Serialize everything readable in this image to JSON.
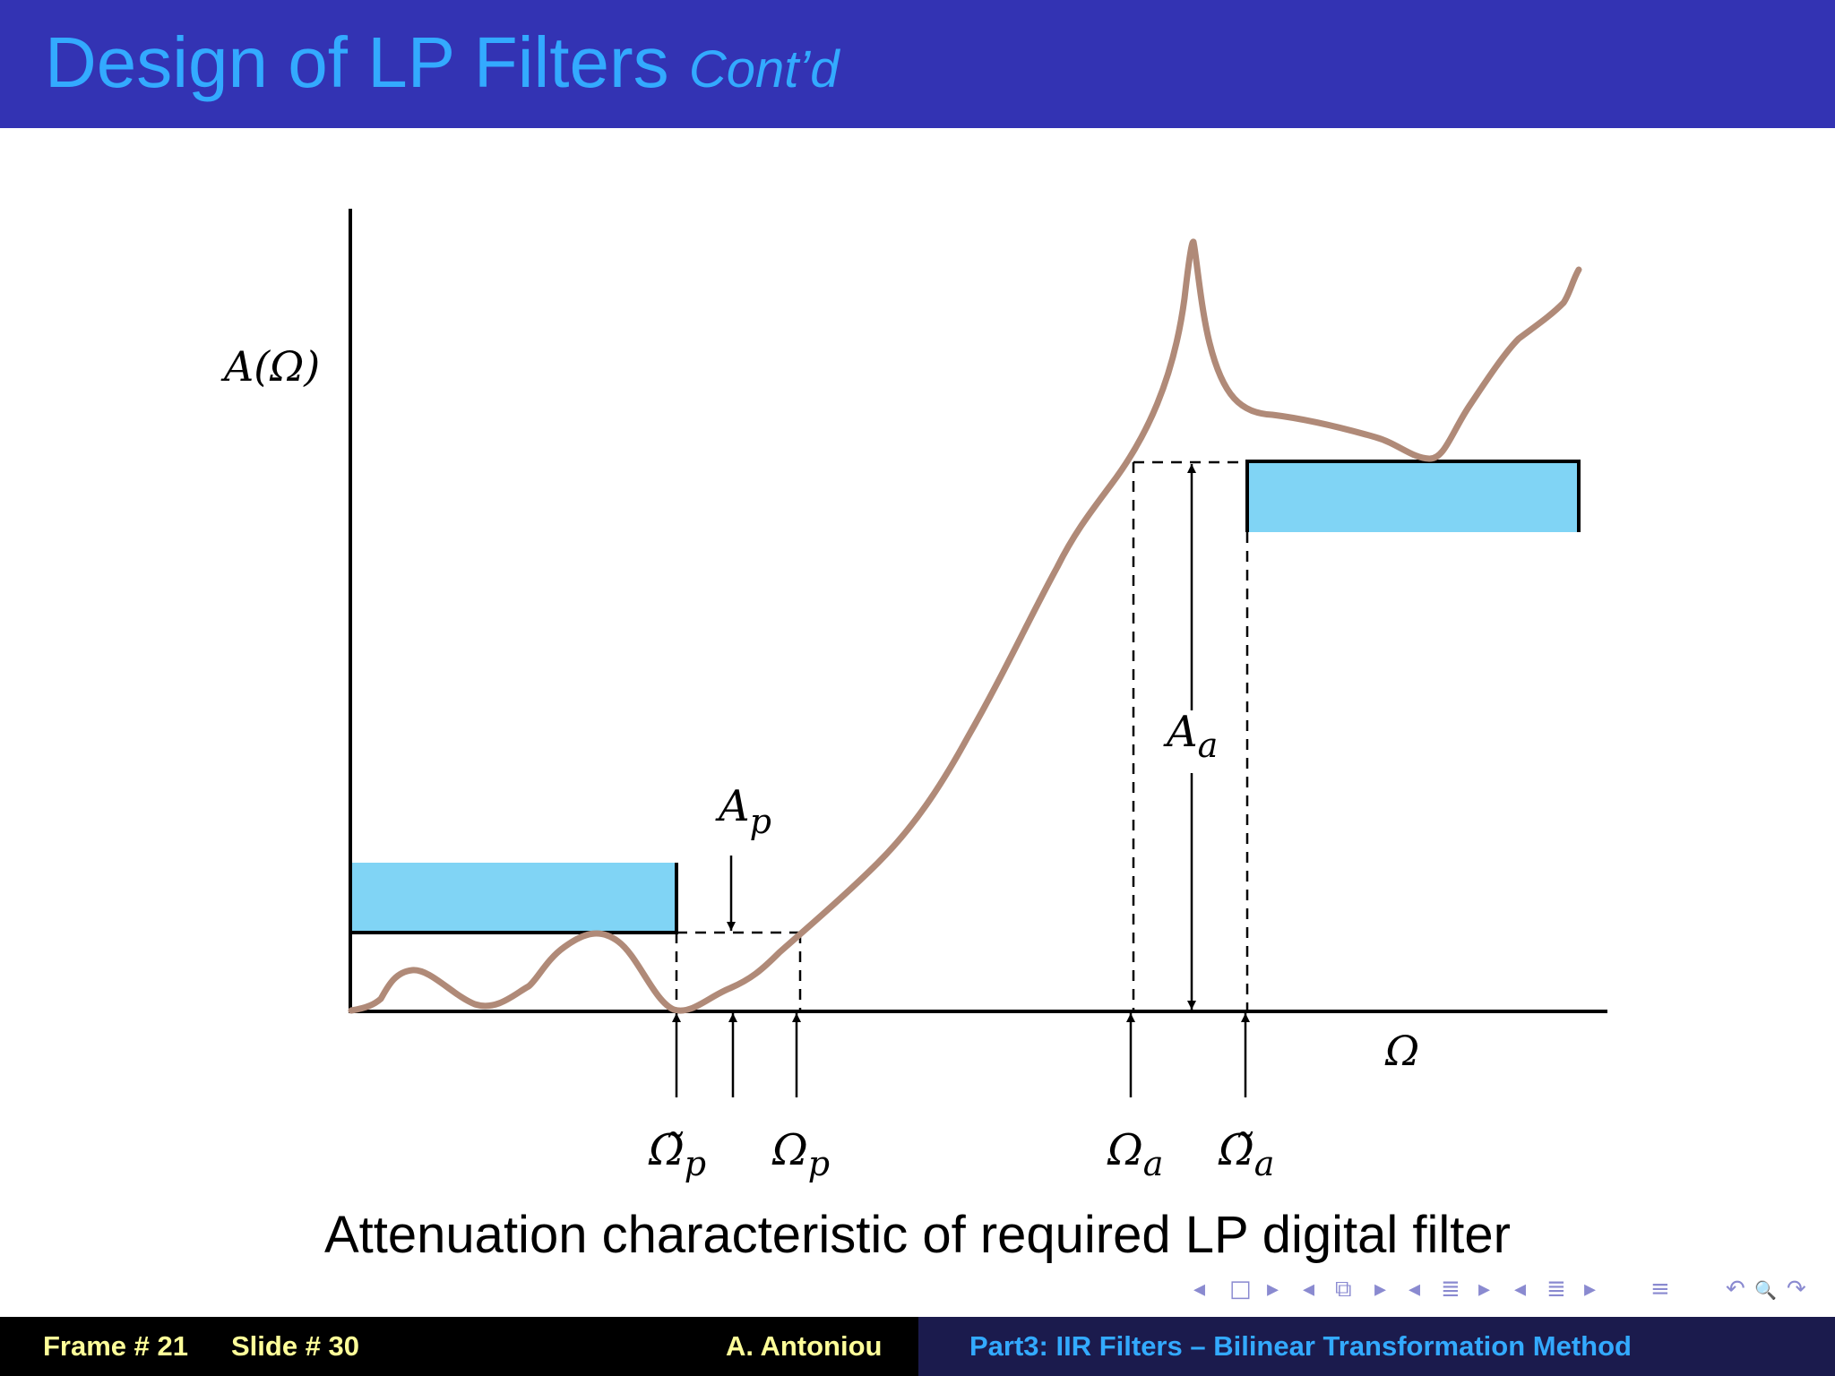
{
  "header": {
    "title": "Design of LP Filters",
    "subtitle": "Cont’d"
  },
  "diagram": {
    "y_axis_label": "A(Ω)",
    "x_axis_label": "Ω",
    "ap_label_main": "A",
    "ap_label_sub": "p",
    "aa_label_main": "A",
    "aa_label_sub": "a",
    "ticks": [
      {
        "main": "Ω̃",
        "sub": "p"
      },
      {
        "main": "Ω",
        "sub": "p"
      },
      {
        "main": "Ω",
        "sub": "a"
      },
      {
        "main": "Ω̃",
        "sub": "a"
      }
    ]
  },
  "caption": "Attenuation characteristic of required LP digital filter",
  "nav": {
    "icons": [
      "arrow-left",
      "frame",
      "arrow-right",
      "arrow-left",
      "subsection",
      "arrow-right",
      "arrow-left",
      "section",
      "arrow-right",
      "arrow-left",
      "align",
      "arrow-right",
      "align",
      "undo",
      "search",
      "redo"
    ],
    "glyphs": [
      "◂",
      "□",
      "▸",
      "◂",
      "⧉",
      "▸",
      "◂",
      "≣",
      "▸",
      "◂",
      "≣",
      "▸",
      "≡",
      "↶",
      "🔍",
      "↷"
    ]
  },
  "footer": {
    "frame": "Frame # 21",
    "slide": "Slide # 30",
    "author": "A. Antoniou",
    "part": "Part3: IIR Filters – Bilinear Transformation Method"
  },
  "colors": {
    "header_bg": "#3333b3",
    "title": "#33aaff",
    "band": "#80d4f5",
    "curve": "#b08a78",
    "footer_yellow": "#ffff99"
  }
}
